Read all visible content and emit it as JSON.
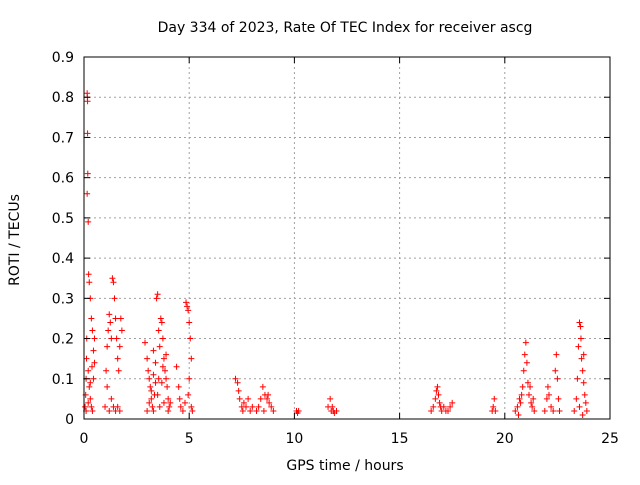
{
  "chart_data": {
    "type": "scatter",
    "title": "Day 334 of 2023, Rate Of TEC Index for receiver ascg",
    "xlabel": "GPS time / hours",
    "ylabel": "ROTI / TECUs",
    "xlim": [
      0,
      25
    ],
    "ylim": [
      0,
      0.9
    ],
    "x_ticks": [
      0,
      5,
      10,
      15,
      20,
      25
    ],
    "x_tick_labels": [
      "0",
      "5",
      "10",
      "15",
      "20",
      "25"
    ],
    "y_ticks": [
      0,
      0.1,
      0.2,
      0.3,
      0.4,
      0.5,
      0.6,
      0.7,
      0.8,
      0.9
    ],
    "y_tick_labels": [
      "0",
      "0.1",
      "0.2",
      "0.3",
      "0.4",
      "0.5",
      "0.6",
      "0.7",
      "0.8",
      "0.9"
    ],
    "grid": true,
    "marker": "+",
    "color": "#ff0000",
    "series": [
      {
        "points": [
          [
            0.05,
            0.03
          ],
          [
            0.08,
            0.06
          ],
          [
            0.1,
            0.1
          ],
          [
            0.12,
            0.15
          ],
          [
            0.13,
            0.2
          ],
          [
            0.15,
            0.81
          ],
          [
            0.16,
            0.8
          ],
          [
            0.17,
            0.79
          ],
          [
            0.17,
            0.71
          ],
          [
            0.18,
            0.61
          ],
          [
            0.15,
            0.56
          ],
          [
            0.2,
            0.49
          ],
          [
            0.22,
            0.36
          ],
          [
            0.25,
            0.34
          ],
          [
            0.3,
            0.3
          ],
          [
            0.35,
            0.25
          ],
          [
            0.4,
            0.22
          ],
          [
            0.2,
            0.12
          ],
          [
            0.25,
            0.08
          ],
          [
            0.3,
            0.05
          ],
          [
            0.35,
            0.03
          ],
          [
            0.4,
            0.02
          ],
          [
            0.45,
            0.1
          ],
          [
            0.5,
            0.14
          ],
          [
            0.5,
            0.2
          ],
          [
            0.1,
            0.02
          ],
          [
            0.2,
            0.04
          ],
          [
            0.3,
            0.09
          ],
          [
            0.45,
            0.17
          ],
          [
            0.38,
            0.13
          ],
          [
            1.0,
            0.03
          ],
          [
            1.05,
            0.12
          ],
          [
            1.1,
            0.18
          ],
          [
            1.15,
            0.22
          ],
          [
            1.2,
            0.26
          ],
          [
            1.25,
            0.24
          ],
          [
            1.3,
            0.2
          ],
          [
            1.35,
            0.35
          ],
          [
            1.4,
            0.34
          ],
          [
            1.45,
            0.3
          ],
          [
            1.5,
            0.25
          ],
          [
            1.55,
            0.2
          ],
          [
            1.6,
            0.15
          ],
          [
            1.65,
            0.12
          ],
          [
            1.7,
            0.18
          ],
          [
            1.75,
            0.25
          ],
          [
            1.8,
            0.22
          ],
          [
            1.2,
            0.02
          ],
          [
            1.3,
            0.05
          ],
          [
            1.4,
            0.03
          ],
          [
            1.5,
            0.02
          ],
          [
            1.6,
            0.03
          ],
          [
            1.7,
            0.02
          ],
          [
            1.1,
            0.08
          ],
          [
            2.9,
            0.19
          ],
          [
            3.0,
            0.15
          ],
          [
            3.05,
            0.12
          ],
          [
            3.1,
            0.1
          ],
          [
            3.15,
            0.08
          ],
          [
            3.2,
            0.05
          ],
          [
            3.25,
            0.03
          ],
          [
            3.3,
            0.02
          ],
          [
            3.35,
            0.06
          ],
          [
            3.4,
            0.09
          ],
          [
            3.45,
            0.3
          ],
          [
            3.5,
            0.31
          ],
          [
            3.55,
            0.22
          ],
          [
            3.6,
            0.18
          ],
          [
            3.65,
            0.25
          ],
          [
            3.7,
            0.24
          ],
          [
            3.75,
            0.2
          ],
          [
            3.8,
            0.15
          ],
          [
            3.85,
            0.12
          ],
          [
            3.9,
            0.1
          ],
          [
            3.95,
            0.08
          ],
          [
            4.0,
            0.05
          ],
          [
            4.05,
            0.03
          ],
          [
            4.1,
            0.04
          ],
          [
            3.1,
            0.04
          ],
          [
            3.2,
            0.07
          ],
          [
            3.3,
            0.11
          ],
          [
            3.4,
            0.14
          ],
          [
            3.5,
            0.06
          ],
          [
            3.6,
            0.03
          ],
          [
            3.7,
            0.09
          ],
          [
            3.8,
            0.04
          ],
          [
            3.9,
            0.16
          ],
          [
            4.0,
            0.02
          ],
          [
            3.0,
            0.02
          ],
          [
            3.3,
            0.17
          ],
          [
            3.55,
            0.1
          ],
          [
            3.75,
            0.13
          ],
          [
            4.4,
            0.13
          ],
          [
            4.5,
            0.08
          ],
          [
            4.55,
            0.05
          ],
          [
            4.6,
            0.03
          ],
          [
            4.7,
            0.02
          ],
          [
            4.8,
            0.04
          ],
          [
            4.85,
            0.29
          ],
          [
            4.9,
            0.28
          ],
          [
            4.95,
            0.27
          ],
          [
            5.0,
            0.24
          ],
          [
            5.05,
            0.2
          ],
          [
            5.1,
            0.15
          ],
          [
            5.0,
            0.1
          ],
          [
            4.95,
            0.06
          ],
          [
            5.1,
            0.03
          ],
          [
            5.15,
            0.02
          ],
          [
            7.2,
            0.1
          ],
          [
            7.3,
            0.09
          ],
          [
            7.35,
            0.07
          ],
          [
            7.4,
            0.05
          ],
          [
            7.5,
            0.03
          ],
          [
            7.55,
            0.02
          ],
          [
            7.6,
            0.04
          ],
          [
            7.7,
            0.03
          ],
          [
            7.8,
            0.05
          ],
          [
            7.9,
            0.02
          ],
          [
            8.0,
            0.03
          ],
          [
            8.2,
            0.02
          ],
          [
            8.4,
            0.05
          ],
          [
            8.5,
            0.08
          ],
          [
            8.6,
            0.06
          ],
          [
            8.7,
            0.05
          ],
          [
            8.8,
            0.04
          ],
          [
            8.9,
            0.03
          ],
          [
            9.0,
            0.02
          ],
          [
            8.3,
            0.03
          ],
          [
            8.55,
            0.02
          ],
          [
            8.75,
            0.06
          ],
          [
            10.1,
            0.02
          ],
          [
            10.15,
            0.015
          ],
          [
            10.2,
            0.02
          ],
          [
            11.6,
            0.03
          ],
          [
            11.7,
            0.05
          ],
          [
            11.75,
            0.02
          ],
          [
            11.8,
            0.03
          ],
          [
            11.85,
            0.02
          ],
          [
            11.9,
            0.015
          ],
          [
            12.0,
            0.02
          ],
          [
            16.5,
            0.02
          ],
          [
            16.6,
            0.03
          ],
          [
            16.7,
            0.05
          ],
          [
            16.75,
            0.07
          ],
          [
            16.8,
            0.08
          ],
          [
            16.85,
            0.06
          ],
          [
            16.9,
            0.04
          ],
          [
            16.95,
            0.03
          ],
          [
            17.0,
            0.02
          ],
          [
            17.1,
            0.03
          ],
          [
            17.2,
            0.02
          ],
          [
            17.3,
            0.02
          ],
          [
            17.4,
            0.03
          ],
          [
            17.5,
            0.04
          ],
          [
            19.4,
            0.02
          ],
          [
            19.45,
            0.03
          ],
          [
            19.5,
            0.05
          ],
          [
            19.55,
            0.02
          ],
          [
            20.5,
            0.02
          ],
          [
            20.6,
            0.03
          ],
          [
            20.7,
            0.05
          ],
          [
            20.75,
            0.04
          ],
          [
            20.8,
            0.06
          ],
          [
            20.85,
            0.08
          ],
          [
            20.9,
            0.12
          ],
          [
            20.95,
            0.16
          ],
          [
            21.0,
            0.19
          ],
          [
            21.05,
            0.14
          ],
          [
            21.1,
            0.09
          ],
          [
            21.15,
            0.06
          ],
          [
            21.2,
            0.08
          ],
          [
            21.25,
            0.04
          ],
          [
            21.3,
            0.03
          ],
          [
            21.4,
            0.02
          ],
          [
            20.65,
            0.01
          ],
          [
            21.35,
            0.05
          ],
          [
            21.9,
            0.02
          ],
          [
            22.0,
            0.05
          ],
          [
            22.05,
            0.08
          ],
          [
            22.1,
            0.06
          ],
          [
            22.2,
            0.03
          ],
          [
            22.3,
            0.02
          ],
          [
            22.4,
            0.12
          ],
          [
            22.45,
            0.16
          ],
          [
            22.5,
            0.1
          ],
          [
            22.55,
            0.05
          ],
          [
            22.6,
            0.02
          ],
          [
            23.3,
            0.02
          ],
          [
            23.4,
            0.05
          ],
          [
            23.45,
            0.1
          ],
          [
            23.5,
            0.18
          ],
          [
            23.55,
            0.24
          ],
          [
            23.6,
            0.23
          ],
          [
            23.62,
            0.2
          ],
          [
            23.65,
            0.15
          ],
          [
            23.7,
            0.12
          ],
          [
            23.75,
            0.09
          ],
          [
            23.8,
            0.06
          ],
          [
            23.85,
            0.04
          ],
          [
            23.9,
            0.02
          ],
          [
            23.55,
            0.03
          ],
          [
            23.7,
            0.01
          ],
          [
            23.75,
            0.16
          ]
        ]
      }
    ]
  }
}
